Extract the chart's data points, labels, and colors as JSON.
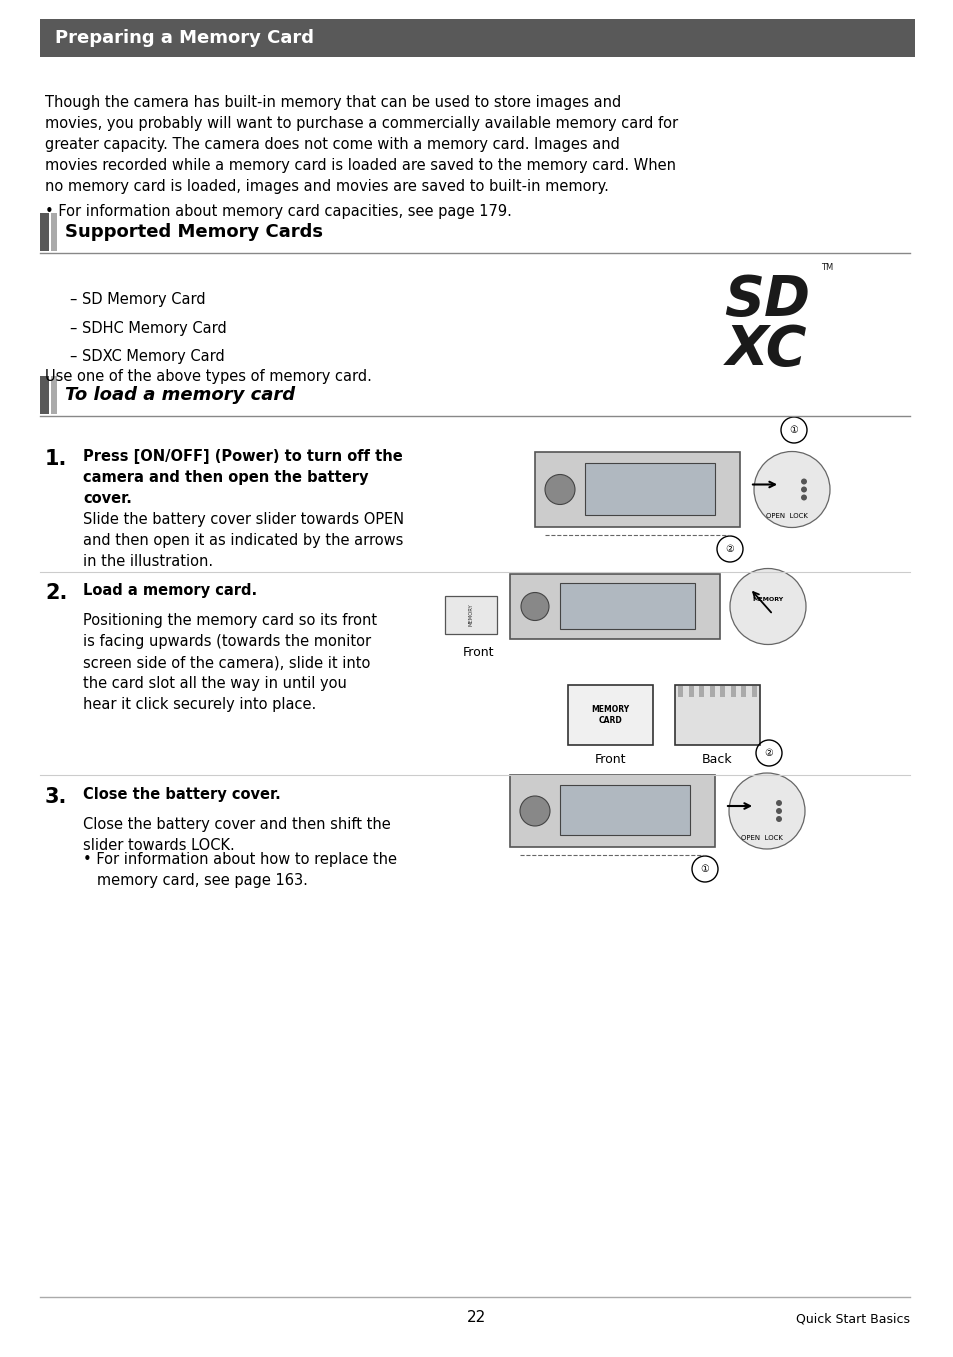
{
  "page_width": 9.54,
  "page_height": 13.57,
  "bg_color": "#ffffff",
  "header_bg": "#595959",
  "header_text": "Preparing a Memory Card",
  "header_text_color": "#ffffff",
  "header_font_size": 13,
  "body_font_size": 10.5,
  "body_text_color": "#000000",
  "intro_text": "Though the camera has built-in memory that can be used to store images and\nmovies, you probably will want to purchase a commercially available memory card for\ngreater capacity. The camera does not come with a memory card. Images and\nmovies recorded while a memory card is loaded are saved to the memory card. When\nno memory card is loaded, images and movies are saved to built-in memory.",
  "bullet_text": "• For information about memory card capacities, see page 179.",
  "section1_title": "Supported Memory Cards",
  "section1_items": [
    "– SD Memory Card",
    "– SDHC Memory Card",
    "– SDXC Memory Card"
  ],
  "section1_footer": "Use one of the above types of memory card.",
  "section2_title": "To load a memory card",
  "step1_num": "1.",
  "step1_title": "Press [ON/OFF] (Power) to turn off the\ncamera and then open the battery\ncover.",
  "step1_body": "Slide the battery cover slider towards OPEN\nand then open it as indicated by the arrows\nin the illustration.",
  "step2_num": "2.",
  "step2_title": "Load a memory card.",
  "step2_body": "Positioning the memory card so its front\nis facing upwards (towards the monitor\nscreen side of the camera), slide it into\nthe card slot all the way in until you\nhear it click securely into place.",
  "step2_label_front_left": "Front",
  "step2_label_front": "Front",
  "step2_label_back": "Back",
  "step3_num": "3.",
  "step3_title": "Close the battery cover.",
  "step3_body": "Close the battery cover and then shift the\nslider towards LOCK.",
  "step3_bullet": "• For information about how to replace the\n   memory card, see page 163.",
  "footer_line_color": "#aaaaaa",
  "page_num": "22",
  "footer_right": "Quick Start Basics",
  "section_bar_color": "#595959",
  "section_line_color": "#888888",
  "step_divider_color": "#cccccc"
}
